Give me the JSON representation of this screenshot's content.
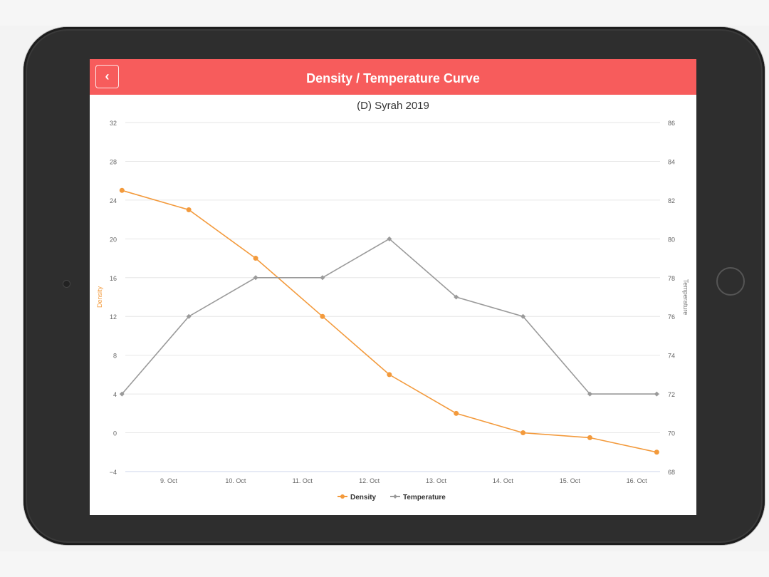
{
  "header": {
    "title": "Density / Temperature Curve",
    "back_label": "‹"
  },
  "colors": {
    "header_bg": "#f75c5c",
    "density": "#f39a3c",
    "temperature": "#9a9a9a"
  },
  "chart_data": {
    "type": "line",
    "title": "(D) Syrah 2019",
    "x_ticks": [
      "9. Oct",
      "10. Oct",
      "11. Oct",
      "12. Oct",
      "13. Oct",
      "14. Oct",
      "15. Oct",
      "16. Oct"
    ],
    "y_left": {
      "label": "Density",
      "ticks": [
        "32",
        "28",
        "24",
        "20",
        "16",
        "12",
        "8",
        "4",
        "0",
        "−4"
      ],
      "range": [
        -4,
        32
      ]
    },
    "y_right": {
      "label": "Temperature",
      "ticks": [
        "86",
        "84",
        "82",
        "80",
        "78",
        "76",
        "74",
        "72",
        "70",
        "68"
      ],
      "range": [
        68,
        86
      ]
    },
    "x_range": [
      8.35,
      16.35
    ],
    "grid": true,
    "legend_position": "bottom-center",
    "series": [
      {
        "name": "Density",
        "axis": "left",
        "x": [
          8.3,
          9.3,
          10.3,
          11.3,
          12.3,
          13.3,
          14.3,
          15.3,
          16.3
        ],
        "values": [
          25,
          23,
          18,
          12,
          6,
          2,
          0,
          -0.5,
          -2
        ]
      },
      {
        "name": "Temperature",
        "axis": "right",
        "x": [
          8.3,
          9.3,
          10.3,
          11.3,
          12.3,
          13.3,
          14.3,
          15.3,
          16.3
        ],
        "values": [
          72,
          76,
          78,
          78,
          80,
          77,
          76,
          72,
          72
        ]
      }
    ]
  }
}
